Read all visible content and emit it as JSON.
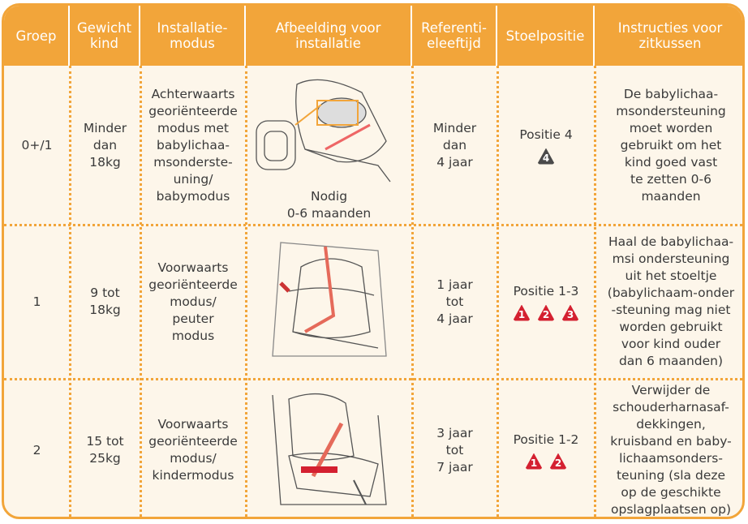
{
  "headers": [
    [
      "Groep"
    ],
    [
      "Gewicht",
      "kind"
    ],
    [
      "Installatie-",
      "modus"
    ],
    [
      "Afbeelding voor",
      "installatie"
    ],
    [
      "Referenti-",
      "eleeftijd"
    ],
    [
      "Stoelpositie"
    ],
    [
      "Instructies voor",
      "zitkussen"
    ]
  ],
  "rows": [
    {
      "group": "0+/1",
      "weight": [
        "Minder",
        "dan",
        "18kg"
      ],
      "mode": [
        "Achterwaarts",
        "georiënteerde",
        "modus met",
        "babylichaa-",
        "msonderste-",
        "uning/",
        "babymodus"
      ],
      "image_caption": [
        "Nodig",
        "0-6 maanden"
      ],
      "age": [
        "Minder",
        "dan",
        "4 jaar"
      ],
      "position": "Positie 4",
      "badges": [
        "4"
      ],
      "badge_color": "#4a4a4a",
      "instructions": [
        "De babylichaa-",
        "msondersteuning",
        "moet worden",
        "gebruikt om het",
        "kind goed vast",
        "te zetten 0-6",
        "maanden"
      ]
    },
    {
      "group": "1",
      "weight": [
        "9 tot",
        "18kg"
      ],
      "mode": [
        "Voorwaarts",
        "georiënteerde",
        "modus/",
        "peuter",
        "modus"
      ],
      "age": [
        "1 jaar",
        "tot",
        "4 jaar"
      ],
      "position": "Positie 1-3",
      "badges": [
        "1",
        "2",
        "3"
      ],
      "badge_color": "#d42030",
      "instructions": [
        "Haal de babylichaa-",
        "msi ondersteuning",
        "uit het stoeltje",
        "(babylichaam-onder",
        "-steuning mag niet",
        "worden gebruikt",
        "voor kind ouder",
        "dan 6 maanden)"
      ]
    },
    {
      "group": "2",
      "weight": [
        "15 tot",
        "25kg"
      ],
      "mode": [
        "Voorwaarts",
        "georiënteerde",
        "modus/",
        "kindermodus"
      ],
      "age": [
        "3 jaar",
        "tot",
        "7 jaar"
      ],
      "position": "Positie 1-2",
      "badges": [
        "1",
        "2"
      ],
      "badge_color": "#d42030",
      "instructions": [
        "Verwijder de",
        "schouderharnasaf-",
        "dekkingen,",
        "kruisband en baby-",
        "lichaamsonders-",
        "teuning (sla deze",
        "op de geschikte",
        "opslagplaatsen op)"
      ]
    }
  ]
}
